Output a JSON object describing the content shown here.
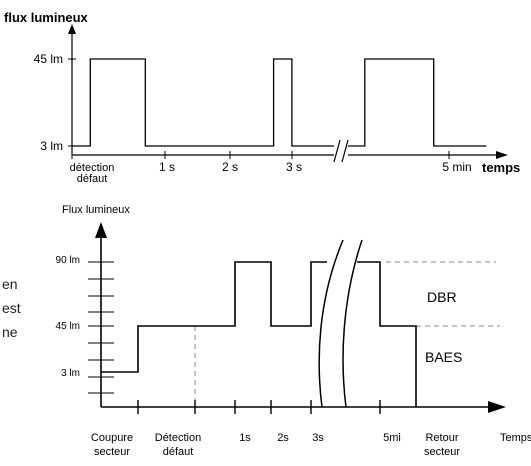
{
  "chart_data": [
    {
      "type": "line",
      "ylabel": "flux lumineux",
      "xlabel": "temps",
      "y_ticks": [
        {
          "value": 45,
          "label": "45 lm"
        },
        {
          "value": 3,
          "label": "3 lm"
        }
      ],
      "x_ticks": [
        {
          "value": 0,
          "label": "détection\ndéfaut"
        },
        {
          "value": 1,
          "label": "1 s"
        },
        {
          "value": 2,
          "label": "2 s"
        },
        {
          "value": 3,
          "label": "3 s"
        },
        {
          "value": 5,
          "label": "5 min"
        }
      ],
      "axis_break_after": 3,
      "series": [
        {
          "x": [
            0,
            0.25,
            0.25,
            1,
            1,
            2,
            2,
            2.75,
            2.75,
            3,
            3,
            3.8,
            3.8,
            4.65,
            4.65,
            5.3
          ],
          "y": [
            3,
            3,
            45,
            45,
            3,
            3,
            3,
            3,
            45,
            45,
            3,
            3,
            45,
            45,
            3,
            3
          ]
        }
      ]
    },
    {
      "type": "line",
      "ylabel": "Flux lumineux",
      "xlabel": "Temps",
      "y_ticks": [
        {
          "value": 90,
          "label": "90 lm"
        },
        {
          "value": 45,
          "label": "45 lm"
        },
        {
          "value": 3,
          "label": "3 lm"
        }
      ],
      "x_ticks": [
        "Coupure secteur",
        "Détection défaut",
        "1s",
        "2s",
        "3s",
        "5mi",
        "Retour secteur"
      ],
      "regions": [
        {
          "label": "DBR",
          "from": 45,
          "to": 90
        },
        {
          "label": "BAES",
          "from": 3,
          "to": 45
        }
      ],
      "axis_break_after": "3s"
    }
  ],
  "side_text": [
    "en",
    "est",
    "ne"
  ]
}
